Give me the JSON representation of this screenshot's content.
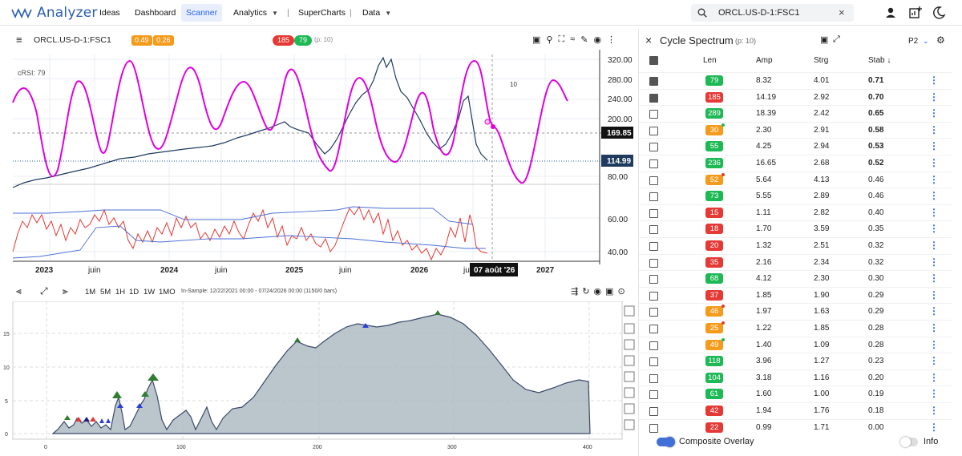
{
  "app": {
    "name": "Analyzer"
  },
  "nav": [
    {
      "label": "Ideas",
      "chev": false
    },
    {
      "label": "Dashboard",
      "chev": false
    },
    {
      "label": "Scanner",
      "chev": false,
      "active": true
    },
    {
      "label": "Analytics",
      "chev": true
    },
    {
      "label": "SuperCharts",
      "chev": false
    },
    {
      "label": "Data",
      "chev": true
    }
  ],
  "search": {
    "value": "ORCL.US-D-1:FSC1"
  },
  "chart": {
    "symbol": "ORCL.US-D-1:FSC1",
    "badge1": "0.49",
    "badge2": "0.26",
    "cycle_badge_red": "185",
    "cycle_badge_green": "79",
    "param": "(p: 10)",
    "crsi_label": "cRSI: 79",
    "cycle_label": "10",
    "price_labels": [
      "320.00",
      "280.00",
      "240.00",
      "200.00",
      "169.85",
      "114.99",
      "80.00",
      "60.00",
      "40.00"
    ],
    "x_labels": [
      "2023",
      "juin",
      "2024",
      "juin",
      "2025",
      "juin",
      "2026",
      "ju",
      "2027"
    ],
    "crosshair_date": "07 août '26",
    "current_price": "169.85",
    "last_price": "114.99"
  },
  "bottom": {
    "timeframes": [
      "1M",
      "5M",
      "1H",
      "1D",
      "1W",
      "1MO"
    ],
    "insample": "In-Sample: 12/22/2021 00:00 - 07/24/2026 00:00 (1150/0 bars)",
    "y_ticks": [
      "15",
      "10",
      "5",
      "0"
    ],
    "x_ticks": [
      "0",
      "100",
      "200",
      "300",
      "400"
    ]
  },
  "panel": {
    "title": "Cycle Spectrum",
    "param": "(p: 10)",
    "preset": "P2",
    "cols": {
      "len": "Len",
      "amp": "Amp",
      "strg": "Strg",
      "stab": "Stab ↓"
    },
    "rows": [
      {
        "len": "79",
        "color": "#1db954",
        "amp": "8.32",
        "strg": "4.01",
        "stab": "0.71",
        "on": true,
        "bold": true,
        "dot": ""
      },
      {
        "len": "185",
        "color": "#e53935",
        "amp": "14.19",
        "strg": "2.92",
        "stab": "0.70",
        "on": true,
        "bold": true,
        "dot": ""
      },
      {
        "len": "289",
        "color": "#1db954",
        "amp": "18.39",
        "strg": "2.42",
        "stab": "0.65",
        "on": false,
        "bold": true,
        "dot": ""
      },
      {
        "len": "30",
        "color": "#f59b1b",
        "amp": "2.30",
        "strg": "2.91",
        "stab": "0.58",
        "on": false,
        "bold": true,
        "dot": "#1db954"
      },
      {
        "len": "55",
        "color": "#1db954",
        "amp": "4.25",
        "strg": "2.94",
        "stab": "0.53",
        "on": false,
        "bold": true,
        "dot": ""
      },
      {
        "len": "236",
        "color": "#1db954",
        "amp": "16.65",
        "strg": "2.68",
        "stab": "0.52",
        "on": false,
        "bold": true,
        "dot": ""
      },
      {
        "len": "52",
        "color": "#f59b1b",
        "amp": "5.64",
        "strg": "4.13",
        "stab": "0.46",
        "on": false,
        "bold": false,
        "dot": "#e53935"
      },
      {
        "len": "73",
        "color": "#1db954",
        "amp": "5.55",
        "strg": "2.89",
        "stab": "0.46",
        "on": false,
        "bold": false,
        "dot": ""
      },
      {
        "len": "15",
        "color": "#e53935",
        "amp": "1.11",
        "strg": "2.82",
        "stab": "0.40",
        "on": false,
        "bold": false,
        "dot": ""
      },
      {
        "len": "18",
        "color": "#e53935",
        "amp": "1.70",
        "strg": "3.59",
        "stab": "0.35",
        "on": false,
        "bold": false,
        "dot": ""
      },
      {
        "len": "20",
        "color": "#e53935",
        "amp": "1.32",
        "strg": "2.51",
        "stab": "0.32",
        "on": false,
        "bold": false,
        "dot": ""
      },
      {
        "len": "35",
        "color": "#e53935",
        "amp": "2.16",
        "strg": "2.34",
        "stab": "0.32",
        "on": false,
        "bold": false,
        "dot": ""
      },
      {
        "len": "68",
        "color": "#1db954",
        "amp": "4.12",
        "strg": "2.30",
        "stab": "0.30",
        "on": false,
        "bold": false,
        "dot": ""
      },
      {
        "len": "37",
        "color": "#e53935",
        "amp": "1.85",
        "strg": "1.90",
        "stab": "0.29",
        "on": false,
        "bold": false,
        "dot": ""
      },
      {
        "len": "46",
        "color": "#f59b1b",
        "amp": "1.97",
        "strg": "1.63",
        "stab": "0.29",
        "on": false,
        "bold": false,
        "dot": "#e53935"
      },
      {
        "len": "25",
        "color": "#f59b1b",
        "amp": "1.22",
        "strg": "1.85",
        "stab": "0.28",
        "on": false,
        "bold": false,
        "dot": "#e53935"
      },
      {
        "len": "49",
        "color": "#f59b1b",
        "amp": "1.40",
        "strg": "1.09",
        "stab": "0.28",
        "on": false,
        "bold": false,
        "dot": "#1db954"
      },
      {
        "len": "118",
        "color": "#1db954",
        "amp": "3.96",
        "strg": "1.27",
        "stab": "0.23",
        "on": false,
        "bold": false,
        "dot": ""
      },
      {
        "len": "104",
        "color": "#1db954",
        "amp": "3.18",
        "strg": "1.16",
        "stab": "0.20",
        "on": false,
        "bold": false,
        "dot": ""
      },
      {
        "len": "61",
        "color": "#1db954",
        "amp": "1.60",
        "strg": "1.00",
        "stab": "0.19",
        "on": false,
        "bold": false,
        "dot": ""
      },
      {
        "len": "42",
        "color": "#e53935",
        "amp": "1.94",
        "strg": "1.76",
        "stab": "0.18",
        "on": false,
        "bold": false,
        "dot": ""
      },
      {
        "len": "22",
        "color": "#e53935",
        "amp": "0.99",
        "strg": "1.71",
        "stab": "0.00",
        "on": false,
        "bold": false,
        "dot": ""
      }
    ],
    "composite_label": "Composite Overlay",
    "info_label": "Info"
  }
}
